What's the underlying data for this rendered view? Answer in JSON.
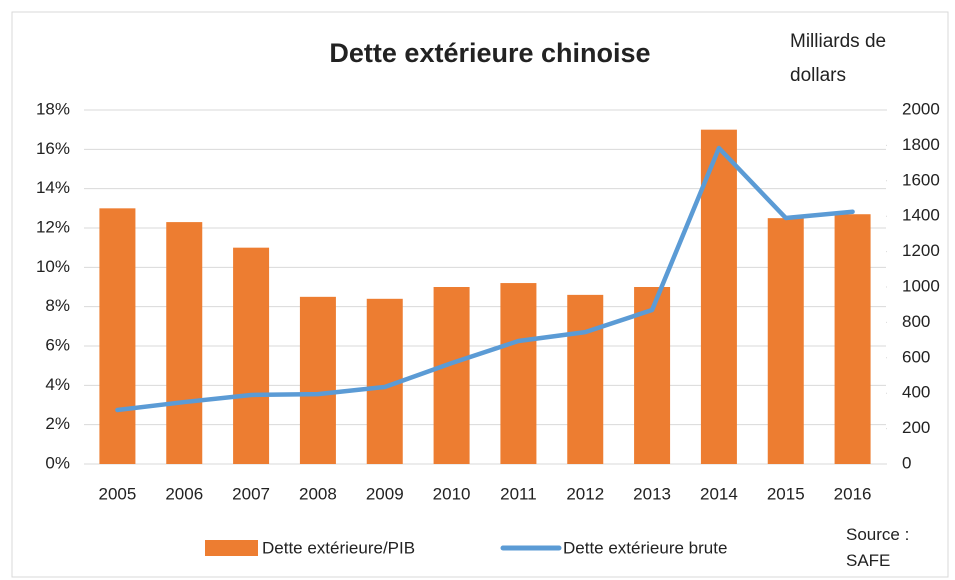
{
  "chart_data": {
    "type": "bar_line",
    "title": "Dette extérieure chinoise",
    "y2_label": "Milliards de dollars",
    "annotation": "Source : SAFE",
    "categories": [
      "2005",
      "2006",
      "2007",
      "2008",
      "2009",
      "2010",
      "2011",
      "2012",
      "2013",
      "2014",
      "2015",
      "2016"
    ],
    "series": [
      {
        "name": "Dette extérieure/PIB",
        "color": "#ed7d31",
        "type": "bar",
        "values": [
          13,
          12.3,
          11,
          8.5,
          8.4,
          9,
          9.2,
          8.6,
          9,
          17,
          12.5,
          12.7
        ]
      },
      {
        "name": "Dette extérieure brute",
        "color": "#5b9bd5",
        "type": "line",
        "axis": "y2",
        "values": [
          305,
          350,
          390,
          395,
          435,
          570,
          695,
          745,
          870,
          1785,
          1390,
          1425
        ]
      }
    ],
    "ylim": [
      0,
      18
    ],
    "yticks": [
      {
        "value": 0,
        "label": "0%"
      },
      {
        "value": 2,
        "label": "2%"
      },
      {
        "value": 4,
        "label": "4%"
      },
      {
        "value": 6,
        "label": "6%"
      },
      {
        "value": 8,
        "label": "8%"
      },
      {
        "value": 10,
        "label": "10%"
      },
      {
        "value": 12,
        "label": "12%"
      },
      {
        "value": 14,
        "label": "14%"
      },
      {
        "value": 16,
        "label": "16%"
      },
      {
        "value": 18,
        "label": "18%"
      }
    ],
    "y2lim": [
      0,
      2000
    ],
    "y2ticks": [
      0,
      200,
      400,
      600,
      800,
      1000,
      1200,
      1400,
      1600,
      1800,
      2000
    ],
    "grid": true,
    "legend": "bottom"
  }
}
